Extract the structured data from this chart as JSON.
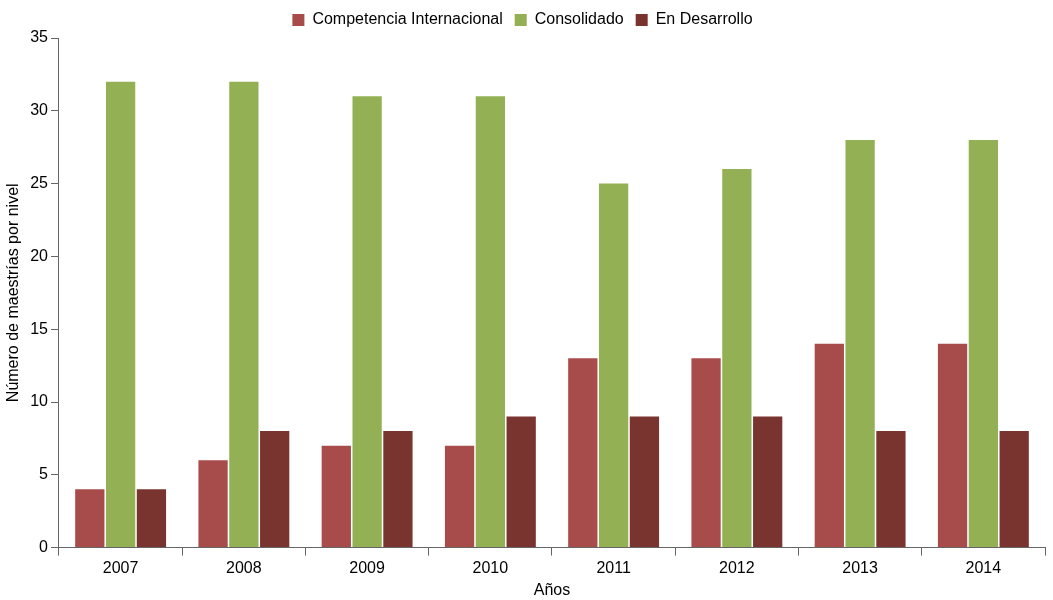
{
  "chart_data": {
    "type": "bar",
    "xlabel": "Años",
    "ylabel": "Número de maestrías por nivel",
    "categories": [
      "2007",
      "2008",
      "2009",
      "2010",
      "2011",
      "2012",
      "2013",
      "2014"
    ],
    "series": [
      {
        "name": "Competencia Internacional",
        "color": "#a84b4b",
        "values": [
          4,
          6,
          7,
          7,
          13,
          13,
          14,
          14
        ]
      },
      {
        "name": "Consolidado",
        "color": "#93b055",
        "values": [
          32,
          32,
          31,
          31,
          25,
          26,
          28,
          28
        ]
      },
      {
        "name": "En Desarrollo",
        "color": "#7a342f",
        "values": [
          4,
          8,
          8,
          9,
          9,
          9,
          8,
          8
        ]
      }
    ],
    "ylim": [
      0,
      35
    ],
    "yticks": [
      0,
      5,
      10,
      15,
      20,
      25,
      30,
      35
    ],
    "grid": false,
    "legend": "top"
  }
}
